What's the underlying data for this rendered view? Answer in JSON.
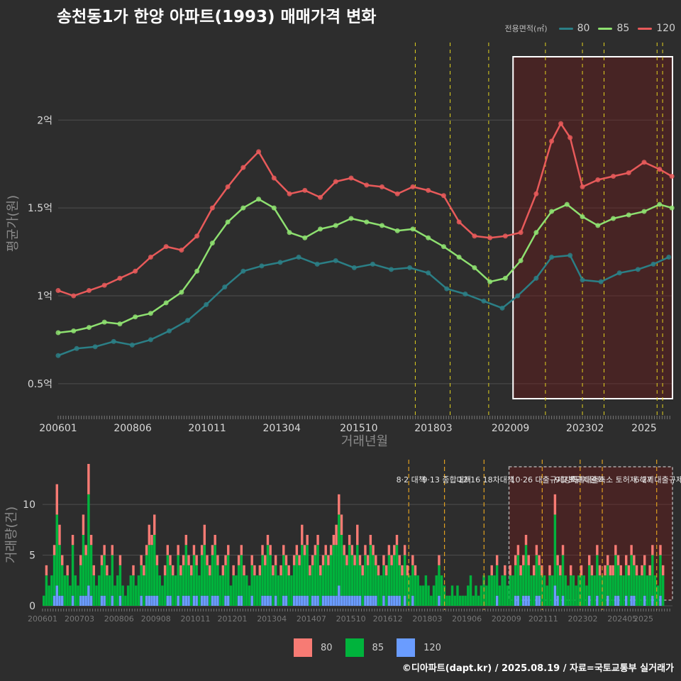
{
  "title": "송천동1가 한양 아파트(1993) 매매가격 변화",
  "legend": {
    "title": "전용면적(㎡)",
    "items": [
      {
        "label": "80",
        "color": "#2b7f86"
      },
      {
        "label": "85",
        "color": "#8ee070"
      },
      {
        "label": "120",
        "color": "#e85a5a"
      }
    ]
  },
  "bar_legend": [
    {
      "label": "80",
      "color": "#f77b74"
    },
    {
      "label": "85",
      "color": "#00b33c"
    },
    {
      "label": "120",
      "color": "#6a9cff"
    }
  ],
  "caption": "©디아파트(dapt.kr) / 2025.08.19 / 자료=국토교통부 실거래가",
  "chart_data": [
    {
      "type": "line",
      "xlabel": "거래년월",
      "ylabel": "평균가(원)",
      "x_ticks": [
        "200601",
        "200806",
        "201011",
        "201304",
        "201510",
        "201803",
        "202009",
        "202302",
        "2025"
      ],
      "y_ticks": [
        "0.5억",
        "1억",
        "1.5억",
        "2억"
      ],
      "ylim": [
        0.35,
        2.32
      ],
      "y_unit": "억",
      "highlight_period": {
        "from": 2020.75,
        "to": 2025.92
      },
      "event_lines": [
        2017.58,
        2018.71,
        2019.96,
        2021.8,
        2023.0,
        2023.7,
        2025.42,
        2025.6
      ],
      "series": [
        {
          "name": "80",
          "color": "#2b7f86",
          "points": [
            [
              2006.0,
              0.66
            ],
            [
              2006.6,
              0.7
            ],
            [
              2007.2,
              0.71
            ],
            [
              2007.8,
              0.74
            ],
            [
              2008.4,
              0.72
            ],
            [
              2009.0,
              0.75
            ],
            [
              2009.6,
              0.8
            ],
            [
              2010.2,
              0.86
            ],
            [
              2010.8,
              0.95
            ],
            [
              2011.4,
              1.05
            ],
            [
              2012.0,
              1.14
            ],
            [
              2012.6,
              1.17
            ],
            [
              2013.2,
              1.19
            ],
            [
              2013.8,
              1.22
            ],
            [
              2014.4,
              1.18
            ],
            [
              2015.0,
              1.2
            ],
            [
              2015.6,
              1.16
            ],
            [
              2016.2,
              1.18
            ],
            [
              2016.8,
              1.15
            ],
            [
              2017.4,
              1.16
            ],
            [
              2018.0,
              1.13
            ],
            [
              2018.6,
              1.04
            ],
            [
              2019.2,
              1.01
            ],
            [
              2019.8,
              0.97
            ],
            [
              2020.4,
              0.93
            ],
            [
              2020.9,
              1.0
            ],
            [
              2021.5,
              1.1
            ],
            [
              2022.0,
              1.22
            ],
            [
              2022.6,
              1.23
            ],
            [
              2023.0,
              1.09
            ],
            [
              2023.6,
              1.08
            ],
            [
              2024.2,
              1.13
            ],
            [
              2024.8,
              1.15
            ],
            [
              2025.3,
              1.18
            ],
            [
              2025.8,
              1.22
            ]
          ]
        },
        {
          "name": "85",
          "color": "#8ee070",
          "points": [
            [
              2006.0,
              0.79
            ],
            [
              2006.5,
              0.8
            ],
            [
              2007.0,
              0.82
            ],
            [
              2007.5,
              0.85
            ],
            [
              2008.0,
              0.84
            ],
            [
              2008.5,
              0.88
            ],
            [
              2009.0,
              0.9
            ],
            [
              2009.5,
              0.96
            ],
            [
              2010.0,
              1.02
            ],
            [
              2010.5,
              1.14
            ],
            [
              2011.0,
              1.3
            ],
            [
              2011.5,
              1.42
            ],
            [
              2012.0,
              1.5
            ],
            [
              2012.5,
              1.55
            ],
            [
              2013.0,
              1.5
            ],
            [
              2013.5,
              1.36
            ],
            [
              2014.0,
              1.33
            ],
            [
              2014.5,
              1.38
            ],
            [
              2015.0,
              1.4
            ],
            [
              2015.5,
              1.44
            ],
            [
              2016.0,
              1.42
            ],
            [
              2016.5,
              1.4
            ],
            [
              2017.0,
              1.37
            ],
            [
              2017.5,
              1.38
            ],
            [
              2018.0,
              1.33
            ],
            [
              2018.5,
              1.28
            ],
            [
              2019.0,
              1.22
            ],
            [
              2019.5,
              1.16
            ],
            [
              2020.0,
              1.08
            ],
            [
              2020.5,
              1.1
            ],
            [
              2021.0,
              1.2
            ],
            [
              2021.5,
              1.36
            ],
            [
              2022.0,
              1.48
            ],
            [
              2022.5,
              1.52
            ],
            [
              2023.0,
              1.45
            ],
            [
              2023.5,
              1.4
            ],
            [
              2024.0,
              1.44
            ],
            [
              2024.5,
              1.46
            ],
            [
              2025.0,
              1.48
            ],
            [
              2025.5,
              1.52
            ],
            [
              2025.9,
              1.5
            ]
          ]
        },
        {
          "name": "120",
          "color": "#e85a5a",
          "points": [
            [
              2006.0,
              1.03
            ],
            [
              2006.5,
              1.0
            ],
            [
              2007.0,
              1.03
            ],
            [
              2007.5,
              1.06
            ],
            [
              2008.0,
              1.1
            ],
            [
              2008.5,
              1.14
            ],
            [
              2009.0,
              1.22
            ],
            [
              2009.5,
              1.28
            ],
            [
              2010.0,
              1.26
            ],
            [
              2010.5,
              1.34
            ],
            [
              2011.0,
              1.5
            ],
            [
              2011.5,
              1.62
            ],
            [
              2012.0,
              1.73
            ],
            [
              2012.5,
              1.82
            ],
            [
              2013.0,
              1.67
            ],
            [
              2013.5,
              1.58
            ],
            [
              2014.0,
              1.6
            ],
            [
              2014.5,
              1.56
            ],
            [
              2015.0,
              1.65
            ],
            [
              2015.5,
              1.67
            ],
            [
              2016.0,
              1.63
            ],
            [
              2016.5,
              1.62
            ],
            [
              2017.0,
              1.58
            ],
            [
              2017.5,
              1.62
            ],
            [
              2018.0,
              1.6
            ],
            [
              2018.5,
              1.57
            ],
            [
              2019.0,
              1.42
            ],
            [
              2019.5,
              1.34
            ],
            [
              2020.0,
              1.33
            ],
            [
              2020.5,
              1.34
            ],
            [
              2021.0,
              1.36
            ],
            [
              2021.5,
              1.58
            ],
            [
              2022.0,
              1.88
            ],
            [
              2022.3,
              1.98
            ],
            [
              2022.6,
              1.9
            ],
            [
              2023.0,
              1.62
            ],
            [
              2023.5,
              1.66
            ],
            [
              2024.0,
              1.68
            ],
            [
              2024.5,
              1.7
            ],
            [
              2025.0,
              1.76
            ],
            [
              2025.5,
              1.72
            ],
            [
              2025.9,
              1.68
            ]
          ]
        }
      ]
    },
    {
      "type": "bar",
      "ylabel": "거래량(건)",
      "x_ticks": [
        "200601",
        "200703",
        "200806",
        "200908",
        "201011",
        "201201",
        "201304",
        "201407",
        "201510",
        "201612",
        "201803",
        "201906",
        "202009",
        "202111",
        "202302",
        "202405",
        "2025"
      ],
      "y_ticks": [
        "0",
        "5",
        "10"
      ],
      "ylim": [
        0,
        14
      ],
      "highlight_period": {
        "from": 2020.75,
        "to": 2025.92
      },
      "events": [
        {
          "x": 2017.58,
          "label": "8·2 대책"
        },
        {
          "x": 2018.71,
          "label": "9·13 종합대책"
        },
        {
          "x": 2019.96,
          "label": "12·16 18차대책"
        },
        {
          "x": 2021.8,
          "label": "10·26 대출규제강화"
        },
        {
          "x": 2023.0,
          "label": "1·3 규제완화"
        },
        {
          "x": 2023.7,
          "label": "9·7 특례대출축소 토허제 해제"
        },
        {
          "x": 2025.42,
          "label": "6·27 대출규제"
        }
      ],
      "monthly_totals": [
        {
          "year": 2006,
          "values": [
            1,
            4,
            2,
            3,
            6,
            12,
            8,
            5,
            3,
            4,
            2,
            7
          ]
        },
        {
          "year": 2007,
          "values": [
            3,
            2,
            5,
            9,
            6,
            14,
            7,
            4,
            2,
            3,
            5,
            6
          ]
        },
        {
          "year": 2008,
          "values": [
            4,
            3,
            6,
            2,
            3,
            5,
            2,
            1,
            2,
            3,
            4,
            2
          ]
        },
        {
          "year": 2009,
          "values": [
            3,
            5,
            4,
            6,
            8,
            7,
            9,
            5,
            3,
            2,
            4,
            6
          ]
        },
        {
          "year": 2010,
          "values": [
            5,
            4,
            3,
            6,
            4,
            5,
            7,
            5,
            4,
            6,
            5,
            3
          ]
        },
        {
          "year": 2011,
          "values": [
            6,
            8,
            5,
            4,
            6,
            7,
            5,
            3,
            4,
            5,
            6,
            2
          ]
        },
        {
          "year": 2012,
          "values": [
            4,
            3,
            5,
            6,
            4,
            3,
            2,
            5,
            4,
            3,
            4,
            6
          ]
        },
        {
          "year": 2013,
          "values": [
            5,
            7,
            6,
            4,
            5,
            3,
            4,
            6,
            5,
            4,
            3,
            5
          ]
        },
        {
          "year": 2014,
          "values": [
            6,
            5,
            8,
            6,
            7,
            4,
            5,
            6,
            7,
            4,
            5,
            6
          ]
        },
        {
          "year": 2015,
          "values": [
            5,
            6,
            7,
            8,
            11,
            9,
            6,
            5,
            7,
            6,
            5,
            8
          ]
        },
        {
          "year": 2016,
          "values": [
            5,
            4,
            6,
            5,
            7,
            6,
            5,
            4,
            3,
            5,
            4,
            6
          ]
        },
        {
          "year": 2017,
          "values": [
            5,
            6,
            7,
            5,
            4,
            6,
            4,
            3,
            5,
            4,
            3,
            2
          ]
        },
        {
          "year": 2018,
          "values": [
            2,
            3,
            2,
            1,
            2,
            3,
            5,
            3,
            2,
            1,
            1,
            2
          ]
        },
        {
          "year": 2019,
          "values": [
            1,
            2,
            1,
            1,
            1,
            2,
            3,
            1,
            2,
            1,
            2,
            3
          ]
        },
        {
          "year": 2020,
          "values": [
            2,
            3,
            4,
            3,
            5,
            2,
            3,
            4,
            2,
            4,
            3,
            5
          ]
        },
        {
          "year": 2021,
          "values": [
            6,
            4,
            5,
            7,
            5,
            3,
            4,
            6,
            5,
            4,
            3,
            2
          ]
        },
        {
          "year": 2022,
          "values": [
            4,
            3,
            11,
            5,
            4,
            6,
            3,
            2,
            4,
            3,
            2,
            3
          ]
        },
        {
          "year": 2023,
          "values": [
            4,
            3,
            2,
            5,
            4,
            3,
            6,
            4,
            3,
            4,
            5,
            4
          ]
        },
        {
          "year": 2024,
          "values": [
            4,
            6,
            5,
            4,
            3,
            5,
            4,
            6,
            5,
            4,
            3,
            4
          ]
        },
        {
          "year": 2025,
          "values": [
            5,
            3,
            4,
            6,
            3,
            2,
            6,
            4
          ]
        }
      ]
    }
  ]
}
